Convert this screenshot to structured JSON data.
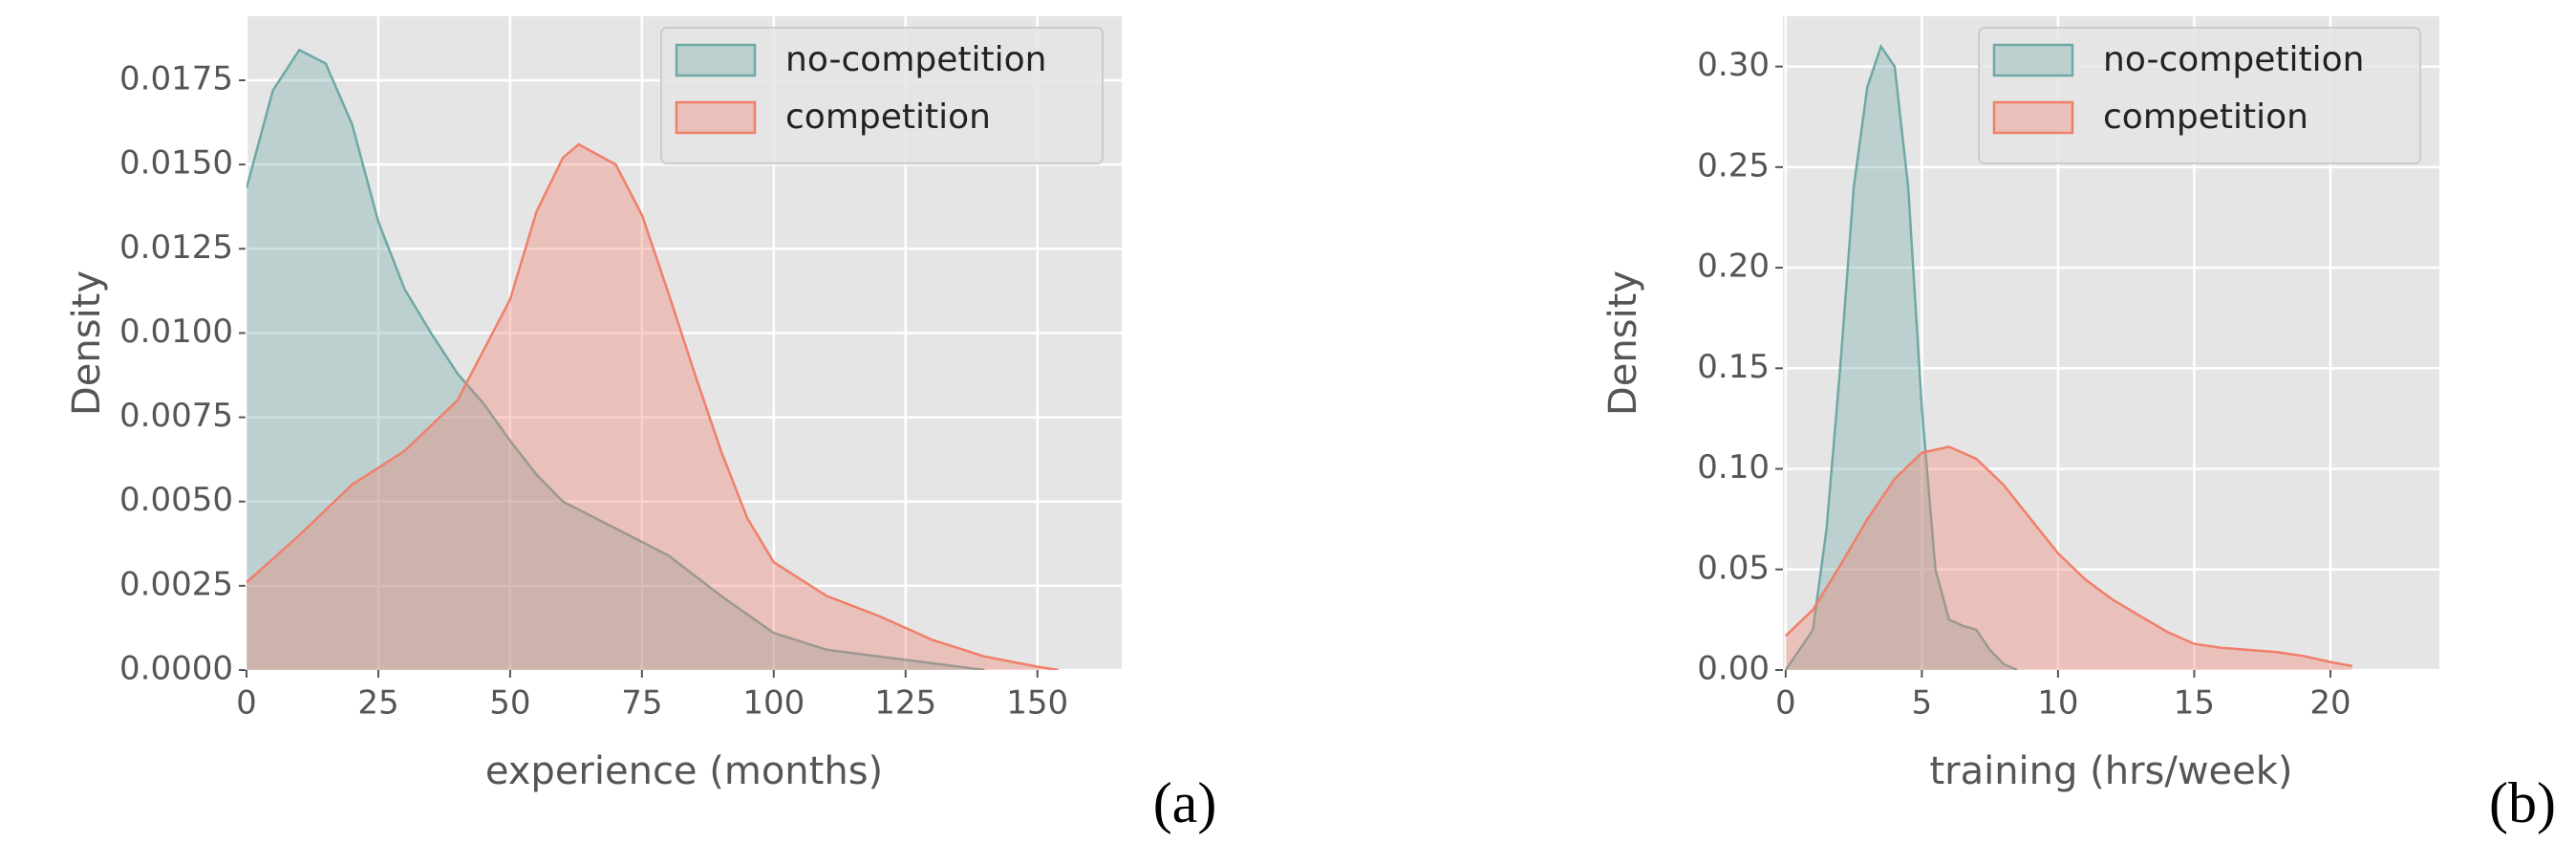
{
  "chart_data": [
    {
      "type": "area",
      "panel_label": "(a)",
      "xlabel": "experience (months)",
      "ylabel": "Density",
      "xlim": [
        0,
        166
      ],
      "ylim": [
        0,
        0.0194
      ],
      "xticks": [
        0,
        25,
        50,
        75,
        100,
        125,
        150
      ],
      "yticks": [
        {
          "value": 0,
          "label": "0.0000"
        },
        0.0025,
        {
          "value": 0.005,
          "label": "0.0050"
        },
        0.0075,
        {
          "value": 0.01,
          "label": "0.0100"
        },
        0.0125,
        {
          "value": 0.015,
          "label": "0.0150"
        },
        0.0175
      ],
      "grid": true,
      "legend": "upper right",
      "series": [
        {
          "name": "no-competition",
          "color": "#6fa8a6",
          "x": [
            0,
            5,
            10,
            15,
            20,
            25,
            30,
            35,
            40,
            45,
            50,
            55,
            60,
            70,
            80,
            90,
            100,
            110,
            120,
            130,
            140
          ],
          "values": [
            0.0143,
            0.0172,
            0.0184,
            0.018,
            0.0162,
            0.0133,
            0.0113,
            0.01,
            0.0088,
            0.0079,
            0.0068,
            0.0058,
            0.005,
            0.0042,
            0.0034,
            0.0022,
            0.0011,
            0.0006,
            0.0004,
            0.0002,
            0
          ]
        },
        {
          "name": "competition",
          "color": "#f07f6a",
          "x": [
            0,
            10,
            20,
            30,
            40,
            50,
            55,
            60,
            63,
            70,
            75,
            80,
            85,
            90,
            95,
            100,
            110,
            120,
            130,
            140,
            150,
            154
          ],
          "values": [
            0.0026,
            0.004,
            0.0055,
            0.0065,
            0.008,
            0.011,
            0.0136,
            0.0152,
            0.0156,
            0.015,
            0.0135,
            0.0112,
            0.0088,
            0.0065,
            0.0045,
            0.0032,
            0.0022,
            0.0016,
            0.0009,
            0.0004,
            0.0001,
            0
          ]
        }
      ]
    },
    {
      "type": "area",
      "panel_label": "(b)",
      "xlabel": "training (hrs/week)",
      "ylabel": "Density",
      "xlim": [
        -0.1,
        24.0
      ],
      "ylim": [
        0,
        0.325
      ],
      "xticks": [
        0,
        5,
        10,
        15,
        20
      ],
      "yticks": [
        {
          "value": 0,
          "label": "0.00"
        },
        0.05,
        {
          "value": 0.1,
          "label": "0.10"
        },
        0.15,
        {
          "value": 0.2,
          "label": "0.20"
        },
        0.25,
        {
          "value": 0.3,
          "label": "0.30"
        }
      ],
      "grid": true,
      "legend": "upper right",
      "series": [
        {
          "name": "no-competition",
          "color": "#6fa8a6",
          "x": [
            0,
            1,
            1.5,
            2,
            2.5,
            3,
            3.5,
            4,
            4.5,
            5,
            5.5,
            6,
            6.5,
            7,
            7.5,
            8,
            8.5
          ],
          "values": [
            0,
            0.02,
            0.07,
            0.15,
            0.24,
            0.29,
            0.31,
            0.3,
            0.24,
            0.13,
            0.05,
            0.025,
            0.022,
            0.02,
            0.01,
            0.003,
            0
          ]
        },
        {
          "name": "competition",
          "color": "#f07f6a",
          "x": [
            0,
            1,
            2,
            3,
            4,
            5,
            6,
            7,
            8,
            9,
            10,
            11,
            12,
            13,
            14,
            15,
            16,
            17,
            18,
            19,
            20,
            20.8
          ],
          "values": [
            0.017,
            0.03,
            0.052,
            0.075,
            0.095,
            0.108,
            0.111,
            0.105,
            0.092,
            0.075,
            0.058,
            0.045,
            0.035,
            0.027,
            0.019,
            0.013,
            0.011,
            0.01,
            0.009,
            0.007,
            0.004,
            0.002
          ]
        }
      ]
    }
  ]
}
